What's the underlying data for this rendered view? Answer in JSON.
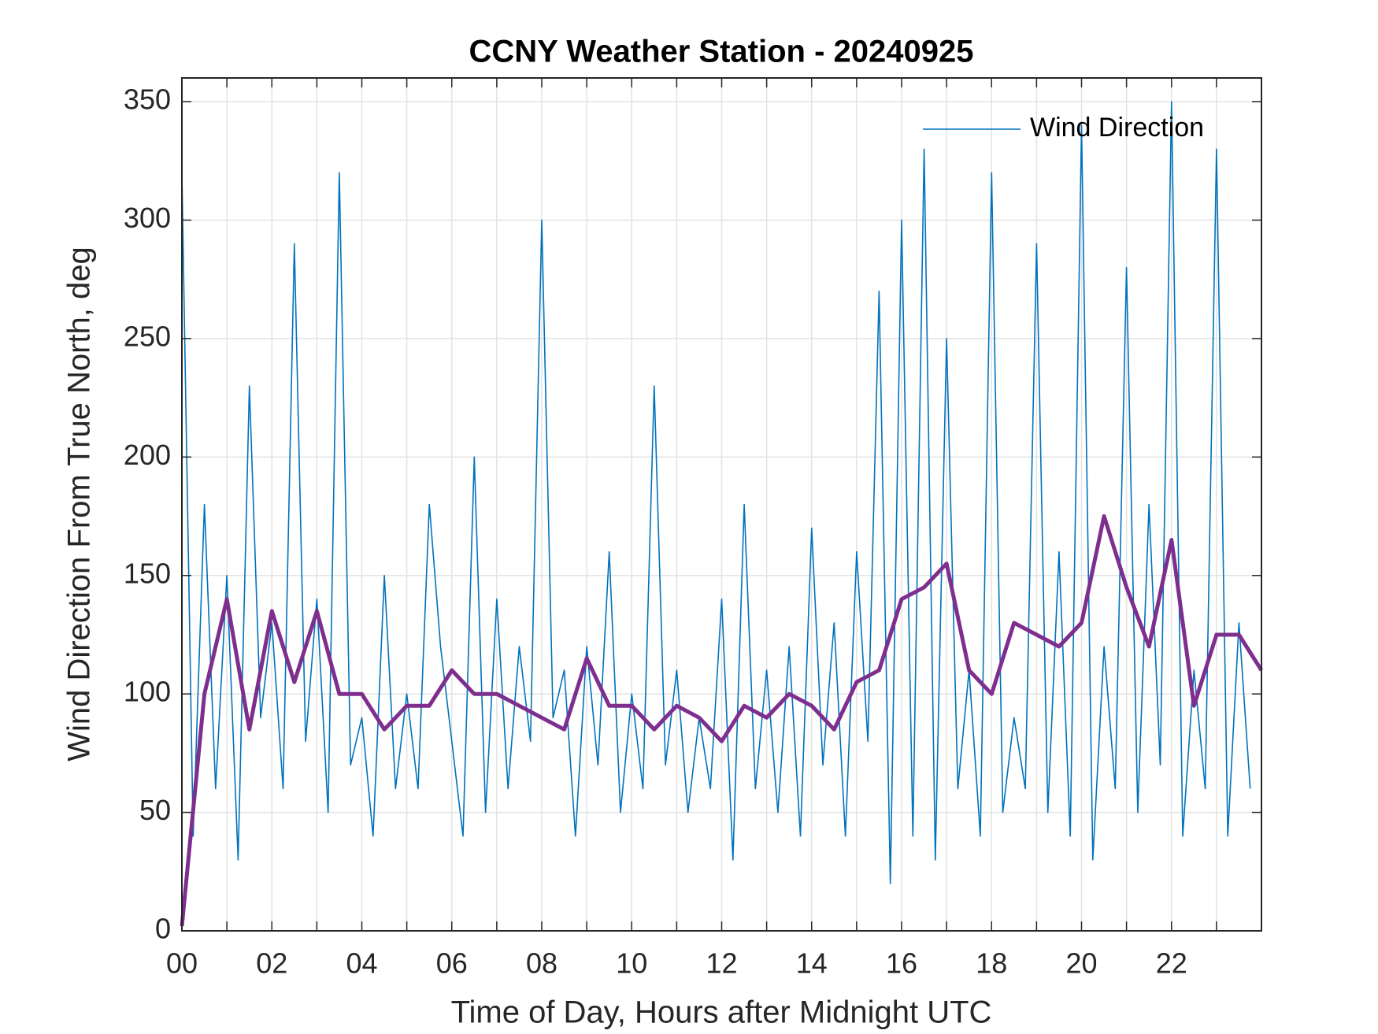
{
  "chart_data": {
    "type": "line",
    "title": "CCNY Weather Station - 20240925",
    "xlabel": "Time of Day, Hours after Midnight UTC",
    "ylabel": "Wind Direction From True North, deg",
    "xlim": [
      0,
      24
    ],
    "ylim": [
      0,
      360
    ],
    "xticks": [
      {
        "value": 0,
        "label": "00"
      },
      {
        "value": 2,
        "label": "02"
      },
      {
        "value": 4,
        "label": "04"
      },
      {
        "value": 6,
        "label": "06"
      },
      {
        "value": 8,
        "label": "08"
      },
      {
        "value": 10,
        "label": "10"
      },
      {
        "value": 12,
        "label": "12"
      },
      {
        "value": 14,
        "label": "14"
      },
      {
        "value": 16,
        "label": "16"
      },
      {
        "value": 18,
        "label": "18"
      },
      {
        "value": 20,
        "label": "20"
      },
      {
        "value": 22,
        "label": "22"
      }
    ],
    "xminorticks": [
      1,
      3,
      5,
      7,
      9,
      11,
      13,
      15,
      17,
      19,
      21,
      23
    ],
    "yticks": [
      0,
      50,
      100,
      150,
      200,
      250,
      300,
      350
    ],
    "grid": true,
    "legend": "upper right",
    "series": [
      {
        "name": "Wind Direction",
        "color": "#0072bd",
        "x": [
          0,
          0.25,
          0.5,
          0.75,
          1,
          1.25,
          1.5,
          1.75,
          2,
          2.25,
          2.5,
          2.75,
          3,
          3.25,
          3.5,
          3.75,
          4,
          4.25,
          4.5,
          4.75,
          5,
          5.25,
          5.5,
          5.75,
          6,
          6.25,
          6.5,
          6.75,
          7,
          7.25,
          7.5,
          7.75,
          8,
          8.25,
          8.5,
          8.75,
          9,
          9.25,
          9.5,
          9.75,
          10,
          10.25,
          10.5,
          10.75,
          11,
          11.25,
          11.5,
          11.75,
          12,
          12.25,
          12.5,
          12.75,
          13,
          13.25,
          13.5,
          13.75,
          14,
          14.25,
          14.5,
          14.75,
          15,
          15.25,
          15.5,
          15.75,
          16,
          16.25,
          16.5,
          16.75,
          17,
          17.25,
          17.5,
          17.75,
          18,
          18.25,
          18.5,
          18.75,
          19,
          19.25,
          19.5,
          19.75,
          20,
          20.25,
          20.5,
          20.75,
          21,
          21.25,
          21.5,
          21.75,
          22,
          22.25,
          22.5,
          22.75,
          23,
          23.25,
          23.5,
          23.75
        ],
        "values": [
          320,
          40,
          180,
          60,
          150,
          30,
          230,
          90,
          130,
          60,
          290,
          80,
          140,
          50,
          320,
          70,
          90,
          40,
          150,
          60,
          100,
          60,
          180,
          120,
          80,
          40,
          200,
          50,
          140,
          60,
          120,
          80,
          300,
          90,
          110,
          40,
          120,
          70,
          160,
          50,
          100,
          60,
          230,
          70,
          110,
          50,
          90,
          60,
          140,
          30,
          180,
          60,
          110,
          50,
          120,
          40,
          170,
          70,
          130,
          40,
          160,
          80,
          270,
          20,
          300,
          40,
          330,
          30,
          250,
          60,
          110,
          40,
          320,
          50,
          90,
          60,
          290,
          50,
          160,
          40,
          340,
          30,
          120,
          60,
          280,
          50,
          180,
          70,
          350,
          40,
          110,
          60,
          330,
          40,
          130,
          60
        ]
      },
      {
        "color": "#7e2f8e",
        "x": [
          0,
          0.5,
          1,
          1.5,
          2,
          2.5,
          3,
          3.5,
          4,
          4.5,
          5,
          5.5,
          6,
          6.5,
          7,
          7.5,
          8,
          8.5,
          9,
          9.5,
          10,
          10.5,
          11,
          11.5,
          12,
          12.5,
          13,
          13.5,
          14,
          14.5,
          15,
          15.5,
          16,
          16.5,
          17,
          17.5,
          18,
          18.5,
          19,
          19.5,
          20,
          20.5,
          21,
          21.5,
          22,
          22.5,
          23,
          23.5,
          24
        ],
        "values": [
          2,
          100,
          140,
          85,
          135,
          105,
          135,
          100,
          100,
          85,
          95,
          95,
          110,
          100,
          100,
          95,
          90,
          85,
          115,
          95,
          95,
          85,
          95,
          90,
          80,
          95,
          90,
          100,
          95,
          85,
          105,
          110,
          140,
          145,
          155,
          110,
          100,
          130,
          125,
          120,
          130,
          175,
          145,
          120,
          165,
          95,
          125,
          125,
          110
        ]
      }
    ]
  }
}
